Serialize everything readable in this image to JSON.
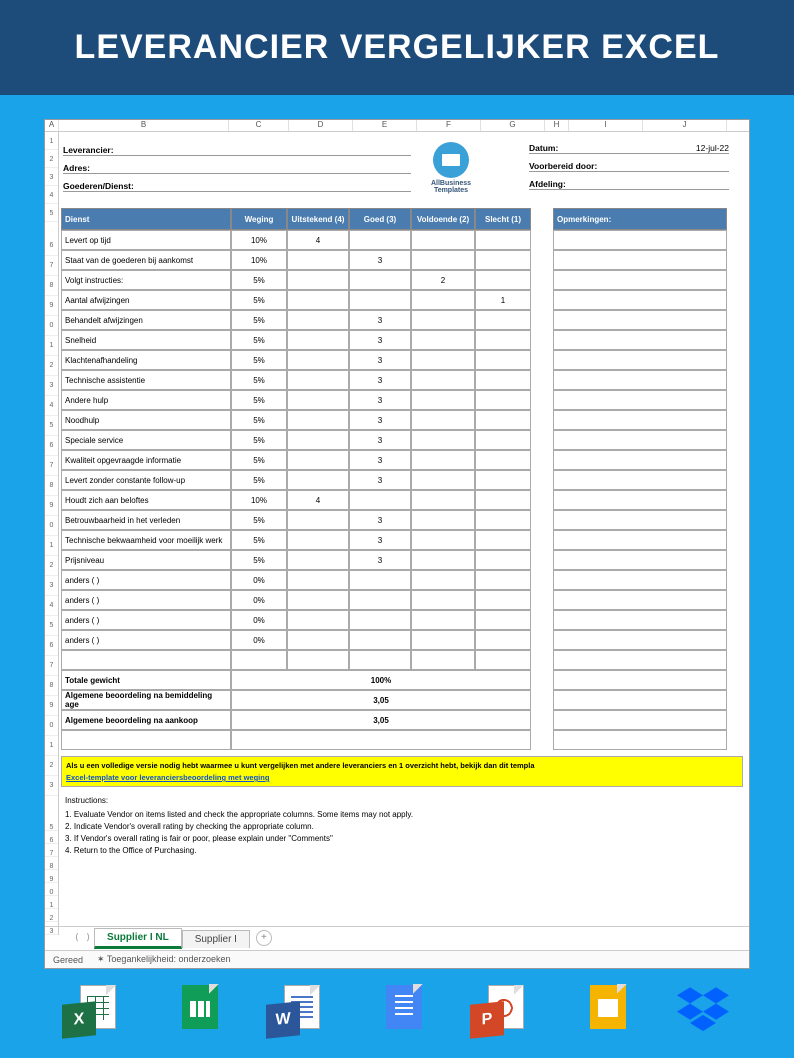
{
  "title": "LEVERANCIER VERGELIJKER EXCEL",
  "columns": [
    "A",
    "B",
    "C",
    "D",
    "E",
    "F",
    "G",
    "H",
    "I",
    "J"
  ],
  "row_numbers_top": [
    "1",
    "2",
    "3",
    "4",
    "5"
  ],
  "row_numbers_mid": [
    "6",
    "7",
    "8",
    "9",
    "0",
    "1",
    "2",
    "3",
    "4",
    "5",
    "6",
    "7",
    "8",
    "9",
    "0",
    "1",
    "2",
    "3",
    "4",
    "5",
    "6",
    "7",
    "8",
    "9"
  ],
  "row_numbers_sum": [
    "0",
    "1",
    "2",
    "3"
  ],
  "row_numbers_instr": [
    "5",
    "6",
    "7",
    "8",
    "9",
    "0",
    "1",
    "2",
    "3"
  ],
  "header_left": {
    "leverancier": "Leverancier:",
    "adres": "Adres:",
    "goederen": "Goederen/Dienst:"
  },
  "logo_text": "AllBusiness\nTemplates",
  "header_right": {
    "datum_label": "Datum:",
    "datum_value": "12-jul-22",
    "voorbereid": "Voorbereid door:",
    "afdeling": "Afdeling:"
  },
  "table_headers": {
    "dienst": "Dienst",
    "weging": "Weging",
    "uit": "Uitstekend (4)",
    "goed": "Goed (3)",
    "vold": "Voldoende (2)",
    "slecht": "Slecht (1)",
    "opm": "Opmerkingen:"
  },
  "rows": [
    {
      "d": "Levert op tijd",
      "w": "10%",
      "c4": "4",
      "c3": "",
      "c2": "",
      "c1": ""
    },
    {
      "d": "Staat van de goederen bij aankomst",
      "w": "10%",
      "c4": "",
      "c3": "3",
      "c2": "",
      "c1": ""
    },
    {
      "d": "Volgt instructies:",
      "w": "5%",
      "c4": "",
      "c3": "",
      "c2": "2",
      "c1": ""
    },
    {
      "d": "Aantal afwijzingen",
      "w": "5%",
      "c4": "",
      "c3": "",
      "c2": "",
      "c1": "1"
    },
    {
      "d": "Behandelt afwijzingen",
      "w": "5%",
      "c4": "",
      "c3": "3",
      "c2": "",
      "c1": ""
    },
    {
      "d": "Snelheid",
      "w": "5%",
      "c4": "",
      "c3": "3",
      "c2": "",
      "c1": ""
    },
    {
      "d": "Klachtenafhandeling",
      "w": "5%",
      "c4": "",
      "c3": "3",
      "c2": "",
      "c1": ""
    },
    {
      "d": "Technische assistentie",
      "w": "5%",
      "c4": "",
      "c3": "3",
      "c2": "",
      "c1": ""
    },
    {
      "d": "Andere hulp",
      "w": "5%",
      "c4": "",
      "c3": "3",
      "c2": "",
      "c1": ""
    },
    {
      "d": "Noodhulp",
      "w": "5%",
      "c4": "",
      "c3": "3",
      "c2": "",
      "c1": ""
    },
    {
      "d": "Speciale service",
      "w": "5%",
      "c4": "",
      "c3": "3",
      "c2": "",
      "c1": ""
    },
    {
      "d": "Kwaliteit opgevraagde informatie",
      "w": "5%",
      "c4": "",
      "c3": "3",
      "c2": "",
      "c1": ""
    },
    {
      "d": "Levert zonder constante follow-up",
      "w": "5%",
      "c4": "",
      "c3": "3",
      "c2": "",
      "c1": ""
    },
    {
      "d": "Houdt zich aan beloftes",
      "w": "10%",
      "c4": "4",
      "c3": "",
      "c2": "",
      "c1": ""
    },
    {
      "d": "Betrouwbaarheid in het verleden",
      "w": "5%",
      "c4": "",
      "c3": "3",
      "c2": "",
      "c1": ""
    },
    {
      "d": "Technische bekwaamheid voor moeilijk werk",
      "w": "5%",
      "c4": "",
      "c3": "3",
      "c2": "",
      "c1": ""
    },
    {
      "d": "Prijsniveau",
      "w": "5%",
      "c4": "",
      "c3": "3",
      "c2": "",
      "c1": ""
    },
    {
      "d": "anders ( )",
      "w": "0%",
      "c4": "",
      "c3": "",
      "c2": "",
      "c1": ""
    },
    {
      "d": "anders ( )",
      "w": "0%",
      "c4": "",
      "c3": "",
      "c2": "",
      "c1": ""
    },
    {
      "d": "anders ( )",
      "w": "0%",
      "c4": "",
      "c3": "",
      "c2": "",
      "c1": ""
    },
    {
      "d": "anders ( )",
      "w": "0%",
      "c4": "",
      "c3": "",
      "c2": "",
      "c1": ""
    },
    {
      "d": "",
      "w": "",
      "c4": "",
      "c3": "",
      "c2": "",
      "c1": ""
    }
  ],
  "summary": [
    {
      "label": "Totale gewicht",
      "val": "100%"
    },
    {
      "label": "Algemene beoordeling na bemiddeling age",
      "val": "3,05"
    },
    {
      "label": "Algemene beoordeling na aankoop",
      "val": "3,05"
    },
    {
      "label": "",
      "val": ""
    }
  ],
  "yellow": {
    "text": "Als u een volledige versie nodig hebt waarmee u kunt vergelijken met andere leveranciers en 1 overzicht hebt, bekijk dan dit templa",
    "link": "Excel-template voor leveranciersbeoordeling met weging"
  },
  "instructions": {
    "head": "Instructions:",
    "items": [
      "1. Evaluate Vendor on items listed and check the appropriate columns. Some items may not apply.",
      "2. Indicate Vendor's overall rating by checking the appropriate column.",
      "3. If Vendor's overall rating is fair or poor, please explain under \"Comments\"",
      "4. Return to the Office of Purchasing."
    ]
  },
  "tabs": {
    "ctrl_left": "⟨",
    "ctrl_right": "⟩",
    "active": "Supplier I NL",
    "other": "Supplier I",
    "plus": "+"
  },
  "status": {
    "gereed": "Gereed",
    "toeg": "Toegankelijkheid: onderzoeken",
    "icon": "✶"
  },
  "icons": [
    "X",
    "",
    "W",
    "",
    "P",
    "",
    ""
  ],
  "colors": {
    "page_bg": "#1aa3e8",
    "title_bg": "#1d4b7a",
    "th_bg": "#4a7cb0",
    "yellow": "#ffff00",
    "border": "#aaaaaa"
  }
}
